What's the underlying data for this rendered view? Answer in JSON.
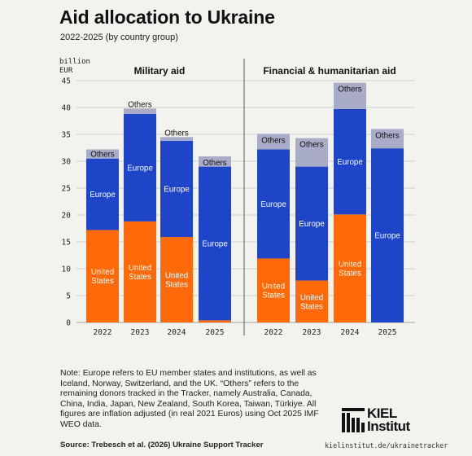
{
  "header": {
    "title": "Aid allocation to Ukraine",
    "subtitle": "2022-2025 (by country group)"
  },
  "chart_data": {
    "type": "bar",
    "stacked": true,
    "ylabel": "billion EUR",
    "ylim": [
      0,
      45
    ],
    "yticks": [
      0,
      5,
      10,
      15,
      20,
      25,
      30,
      35,
      40,
      45
    ],
    "grid": true,
    "colors": {
      "United States": "#fe6a09",
      "Europe": "#1e44c7",
      "Others": "#a8acc8",
      "grid": "#c4c4c0",
      "divider": "#555555"
    },
    "series_labels": {
      "United States": "United States",
      "Europe": "Europe",
      "Others": "Others"
    },
    "panels": [
      {
        "title": "Military aid",
        "categories": [
          "2022",
          "2023",
          "2024",
          "2025"
        ],
        "series": [
          {
            "name": "United States",
            "values": [
              17.2,
              18.8,
              15.9,
              0.4
            ]
          },
          {
            "name": "Europe",
            "values": [
              13.3,
              20.0,
              17.9,
              28.6
            ]
          },
          {
            "name": "Others",
            "values": [
              1.7,
              1.0,
              0.7,
              1.9
            ]
          }
        ]
      },
      {
        "title": "Financial & humanitarian aid",
        "categories": [
          "2022",
          "2023",
          "2024",
          "2025"
        ],
        "series": [
          {
            "name": "United States",
            "values": [
              11.9,
              7.8,
              20.1,
              0.0
            ]
          },
          {
            "name": "Europe",
            "values": [
              20.3,
              21.2,
              19.6,
              32.4
            ]
          },
          {
            "name": "Others",
            "values": [
              2.9,
              5.3,
              4.9,
              3.6
            ]
          }
        ]
      }
    ]
  },
  "note": "Note: Europe refers to EU member states and institutions, as well as Iceland, Norway, Switzerland, and the UK. “Others” refers to the remaining donors tracked in the Tracker, namely Australia, Canada, China, India, Japan, New Zealand, South Korea, Taiwan, Türkiye. All figures are inflation adjusted (in real 2021 Euros) using Oct 2025 IMF WEO data.",
  "source": "Source: Trebesch et al. (2026) Ukraine Support Tracker",
  "website": "kielinstitut.de/ukrainetracker",
  "logo": {
    "line1": "KIEL",
    "line2": "Institut"
  }
}
